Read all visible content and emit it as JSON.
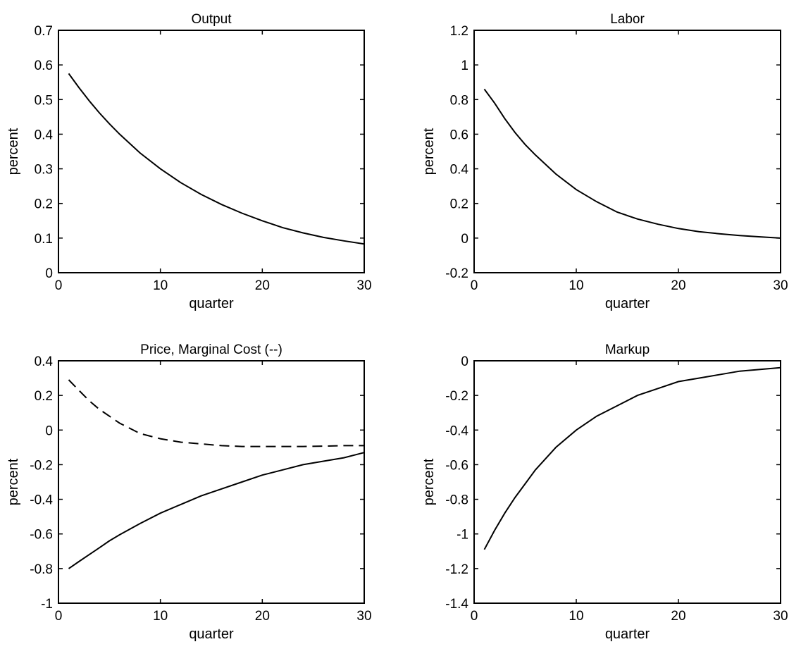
{
  "chart_data": [
    {
      "type": "line",
      "title": "Output",
      "xlabel": "quarter",
      "ylabel": "percent",
      "xlim": [
        0,
        30
      ],
      "ylim": [
        0,
        0.7
      ],
      "xticks": [
        0,
        10,
        20,
        30
      ],
      "xtick_labels": [
        "0",
        "10",
        "20",
        "30"
      ],
      "yticks": [
        0,
        0.1,
        0.2,
        0.3,
        0.4,
        0.5,
        0.6,
        0.7
      ],
      "ytick_labels": [
        "0",
        "0.1",
        "0.2",
        "0.3",
        "0.4",
        "0.5",
        "0.6",
        "0.7"
      ],
      "grid": false,
      "series": [
        {
          "style": "solid",
          "x": [
            1,
            2,
            3,
            4,
            5,
            6,
            8,
            10,
            12,
            14,
            16,
            18,
            20,
            22,
            24,
            26,
            28,
            30
          ],
          "y": [
            0.575,
            0.535,
            0.497,
            0.462,
            0.43,
            0.4,
            0.346,
            0.3,
            0.26,
            0.226,
            0.197,
            0.172,
            0.15,
            0.13,
            0.115,
            0.102,
            0.092,
            0.083
          ]
        }
      ]
    },
    {
      "type": "line",
      "title": "Labor",
      "xlabel": "quarter",
      "ylabel": "percent",
      "xlim": [
        0,
        30
      ],
      "ylim": [
        -0.2,
        1.2
      ],
      "xticks": [
        0,
        10,
        20,
        30
      ],
      "xtick_labels": [
        "0",
        "10",
        "20",
        "30"
      ],
      "yticks": [
        -0.2,
        0,
        0.2,
        0.4,
        0.6,
        0.8,
        1,
        1.2
      ],
      "ytick_labels": [
        "-0.2",
        "0",
        "0.2",
        "0.4",
        "0.6",
        "0.8",
        "1",
        "1.2"
      ],
      "grid": false,
      "series": [
        {
          "style": "solid",
          "x": [
            1,
            2,
            3,
            4,
            5,
            6,
            8,
            10,
            12,
            14,
            16,
            18,
            20,
            22,
            24,
            26,
            28,
            30
          ],
          "y": [
            0.86,
            0.78,
            0.69,
            0.61,
            0.54,
            0.48,
            0.37,
            0.28,
            0.21,
            0.15,
            0.11,
            0.08,
            0.055,
            0.037,
            0.025,
            0.015,
            0.007,
            0.0
          ]
        }
      ]
    },
    {
      "type": "line",
      "title": "Price, Marginal Cost (--)",
      "xlabel": "quarter",
      "ylabel": "percent",
      "xlim": [
        0,
        30
      ],
      "ylim": [
        -1,
        0.4
      ],
      "xticks": [
        0,
        10,
        20,
        30
      ],
      "xtick_labels": [
        "0",
        "10",
        "20",
        "30"
      ],
      "yticks": [
        -1,
        -0.8,
        -0.6,
        -0.4,
        -0.2,
        0,
        0.2,
        0.4
      ],
      "ytick_labels": [
        "-1",
        "-0.8",
        "-0.6",
        "-0.4",
        "-0.2",
        "0",
        "0.2",
        "0.4"
      ],
      "grid": false,
      "series": [
        {
          "style": "solid",
          "x": [
            1,
            2,
            3,
            4,
            5,
            6,
            8,
            10,
            12,
            14,
            16,
            18,
            20,
            22,
            24,
            26,
            28,
            30
          ],
          "y": [
            -0.8,
            -0.76,
            -0.72,
            -0.68,
            -0.64,
            -0.605,
            -0.54,
            -0.48,
            -0.43,
            -0.38,
            -0.34,
            -0.3,
            -0.26,
            -0.23,
            -0.2,
            -0.18,
            -0.16,
            -0.13
          ]
        },
        {
          "style": "dashed",
          "x": [
            1,
            2,
            3,
            4,
            5,
            6,
            8,
            10,
            12,
            14,
            16,
            18,
            20,
            22,
            24,
            26,
            28,
            30
          ],
          "y": [
            0.29,
            0.23,
            0.17,
            0.12,
            0.08,
            0.04,
            -0.02,
            -0.05,
            -0.07,
            -0.08,
            -0.09,
            -0.095,
            -0.095,
            -0.095,
            -0.095,
            -0.093,
            -0.09,
            -0.09
          ]
        }
      ]
    },
    {
      "type": "line",
      "title": "Markup",
      "xlabel": "quarter",
      "ylabel": "percent",
      "xlim": [
        0,
        30
      ],
      "ylim": [
        -1.4,
        0
      ],
      "xticks": [
        0,
        10,
        20,
        30
      ],
      "xtick_labels": [
        "0",
        "10",
        "20",
        "30"
      ],
      "yticks": [
        -1.4,
        -1.2,
        -1,
        -0.8,
        -0.6,
        -0.4,
        -0.2,
        0
      ],
      "ytick_labels": [
        "-1.4",
        "-1.2",
        "-1",
        "-0.8",
        "-0.6",
        "-0.4",
        "-0.2",
        "0"
      ],
      "grid": false,
      "series": [
        {
          "style": "solid",
          "x": [
            1,
            2,
            3,
            4,
            5,
            6,
            8,
            10,
            12,
            14,
            16,
            18,
            20,
            22,
            24,
            26,
            28,
            30
          ],
          "y": [
            -1.09,
            -0.98,
            -0.88,
            -0.79,
            -0.71,
            -0.63,
            -0.5,
            -0.4,
            -0.32,
            -0.26,
            -0.2,
            -0.16,
            -0.12,
            -0.1,
            -0.08,
            -0.06,
            -0.05,
            -0.04
          ]
        }
      ]
    }
  ]
}
